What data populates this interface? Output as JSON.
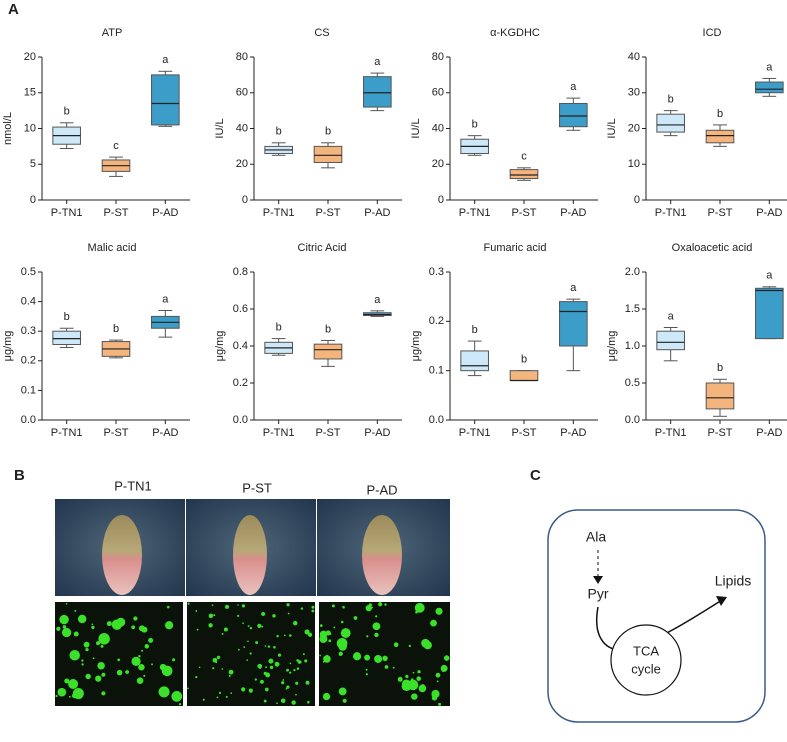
{
  "panel_labels": [
    "A",
    "B",
    "C"
  ],
  "chart_data": [
    {
      "type": "box",
      "title": "ATP",
      "ylabel": "nmol/L",
      "categories": [
        "P-TN1",
        "P-ST",
        "P-AD"
      ],
      "colors": [
        "#cde8f8",
        "#f4b47e",
        "#3c9dc9"
      ],
      "boxes": [
        {
          "min": 7.2,
          "q1": 7.8,
          "median": 9,
          "q3": 10.2,
          "max": 10.8
        },
        {
          "min": 3.3,
          "q1": 4,
          "median": 4.8,
          "q3": 5.6,
          "max": 6
        },
        {
          "min": 10.3,
          "q1": 10.5,
          "median": 13.5,
          "q3": 17.5,
          "max": 18
        }
      ],
      "letters": [
        "b",
        "c",
        "a"
      ],
      "ylim": [
        0,
        20
      ],
      "yticks": [
        0,
        5,
        10,
        15,
        20
      ]
    },
    {
      "type": "box",
      "title": "CS",
      "ylabel": "IU/L",
      "categories": [
        "P-TN1",
        "P-ST",
        "P-AD"
      ],
      "colors": [
        "#cde8f8",
        "#f4b47e",
        "#3c9dc9"
      ],
      "boxes": [
        {
          "min": 25,
          "q1": 26,
          "median": 28,
          "q3": 30,
          "max": 32
        },
        {
          "min": 18,
          "q1": 21,
          "median": 25,
          "q3": 30,
          "max": 32
        },
        {
          "min": 50,
          "q1": 52,
          "median": 60,
          "q3": 69,
          "max": 71
        }
      ],
      "letters": [
        "b",
        "b",
        "a"
      ],
      "ylim": [
        0,
        80
      ],
      "yticks": [
        0,
        20,
        40,
        60,
        80
      ]
    },
    {
      "type": "box",
      "title": "α-KGDHC",
      "ylabel": "IU/L",
      "categories": [
        "P-TN1",
        "P-ST",
        "P-AD"
      ],
      "colors": [
        "#cde8f8",
        "#f4b47e",
        "#3c9dc9"
      ],
      "boxes": [
        {
          "min": 25,
          "q1": 26,
          "median": 30,
          "q3": 34,
          "max": 36
        },
        {
          "min": 11,
          "q1": 12,
          "median": 14,
          "q3": 17,
          "max": 18
        },
        {
          "min": 39,
          "q1": 41,
          "median": 47,
          "q3": 54,
          "max": 57
        }
      ],
      "letters": [
        "b",
        "c",
        "a"
      ],
      "ylim": [
        0,
        80
      ],
      "yticks": [
        0,
        20,
        40,
        60,
        80
      ]
    },
    {
      "type": "box",
      "title": "ICD",
      "ylabel": "IU/L",
      "categories": [
        "P-TN1",
        "P-ST",
        "P-AD"
      ],
      "colors": [
        "#cde8f8",
        "#f4b47e",
        "#3c9dc9"
      ],
      "boxes": [
        {
          "min": 18,
          "q1": 19,
          "median": 21,
          "q3": 24,
          "max": 25
        },
        {
          "min": 15,
          "q1": 16,
          "median": 18,
          "q3": 19.5,
          "max": 21
        },
        {
          "min": 29,
          "q1": 30,
          "median": 31,
          "q3": 33,
          "max": 34
        }
      ],
      "letters": [
        "b",
        "b",
        "a"
      ],
      "ylim": [
        0,
        40
      ],
      "yticks": [
        0,
        10,
        20,
        30,
        40
      ]
    },
    {
      "type": "box",
      "title": "Malic acid",
      "ylabel": "μg/mg",
      "categories": [
        "P-TN1",
        "P-ST",
        "P-AD"
      ],
      "colors": [
        "#cde8f8",
        "#f4b47e",
        "#3c9dc9"
      ],
      "boxes": [
        {
          "min": 0.245,
          "q1": 0.255,
          "median": 0.275,
          "q3": 0.3,
          "max": 0.31
        },
        {
          "min": 0.21,
          "q1": 0.215,
          "median": 0.24,
          "q3": 0.265,
          "max": 0.27
        },
        {
          "min": 0.28,
          "q1": 0.31,
          "median": 0.33,
          "q3": 0.35,
          "max": 0.37
        }
      ],
      "letters": [
        "b",
        "b",
        "a"
      ],
      "ylim": [
        0,
        0.5
      ],
      "yticks": [
        {
          "value": 0,
          "label": "0.0"
        },
        0.1,
        0.2,
        0.3,
        0.4,
        0.5
      ]
    },
    {
      "type": "box",
      "title": "Citric Acid",
      "ylabel": "μg/mg",
      "categories": [
        "P-TN1",
        "P-ST",
        "P-AD"
      ],
      "colors": [
        "#cde8f8",
        "#f4b47e",
        "#3c9dc9"
      ],
      "boxes": [
        {
          "min": 0.35,
          "q1": 0.36,
          "median": 0.39,
          "q3": 0.42,
          "max": 0.44
        },
        {
          "min": 0.29,
          "q1": 0.33,
          "median": 0.38,
          "q3": 0.41,
          "max": 0.43
        },
        {
          "min": 0.56,
          "q1": 0.565,
          "median": 0.57,
          "q3": 0.58,
          "max": 0.59
        }
      ],
      "letters": [
        "b",
        "b",
        "a"
      ],
      "ylim": [
        0,
        0.8
      ],
      "yticks": [
        {
          "value": 0,
          "label": "0.0"
        },
        0.2,
        0.4,
        0.6,
        0.8
      ]
    },
    {
      "type": "box",
      "title": "Fumaric acid",
      "ylabel": "μg/mg",
      "categories": [
        "P-TN1",
        "P-ST",
        "P-AD"
      ],
      "colors": [
        "#cde8f8",
        "#f4b47e",
        "#3c9dc9"
      ],
      "boxes": [
        {
          "min": 0.09,
          "q1": 0.1,
          "median": 0.11,
          "q3": 0.14,
          "max": 0.16
        },
        {
          "min": 0.08,
          "q1": 0.08,
          "median": 0.08,
          "q3": 0.1,
          "max": 0.1
        },
        {
          "min": 0.1,
          "q1": 0.15,
          "median": 0.22,
          "q3": 0.24,
          "max": 0.245
        }
      ],
      "letters": [
        "b",
        "b",
        "a"
      ],
      "ylim": [
        0,
        0.3
      ],
      "yticks": [
        {
          "value": 0,
          "label": "0.0"
        },
        0.1,
        0.2,
        0.3
      ]
    },
    {
      "type": "box",
      "title": "Oxaloacetic acid",
      "ylabel": "μg/mg",
      "categories": [
        "P-TN1",
        "P-ST",
        "P-AD"
      ],
      "colors": [
        "#cde8f8",
        "#f4b47e",
        "#3c9dc9"
      ],
      "boxes": [
        {
          "min": 0.8,
          "q1": 0.95,
          "median": 1.05,
          "q3": 1.2,
          "max": 1.25
        },
        {
          "min": 0.05,
          "q1": 0.15,
          "median": 0.3,
          "q3": 0.5,
          "max": 0.55
        },
        {
          "min": 1.1,
          "q1": 1.1,
          "median": 1.75,
          "q3": 1.78,
          "max": 1.8
        }
      ],
      "letters": [
        "a",
        "b",
        "a"
      ],
      "ylim": [
        0,
        2
      ],
      "yticks": [
        {
          "value": 0,
          "label": "0.0"
        },
        0.5,
        {
          "value": 1,
          "label": "1.0"
        },
        1.5,
        {
          "value": 2,
          "label": "2.0"
        }
      ]
    }
  ],
  "images": {
    "labels": [
      "P-TN1",
      "P-ST",
      "P-AD"
    ]
  },
  "diagram": {
    "nodes": [
      "Ala",
      "Pyr",
      "Lipids",
      "TCA",
      "cycle"
    ]
  }
}
